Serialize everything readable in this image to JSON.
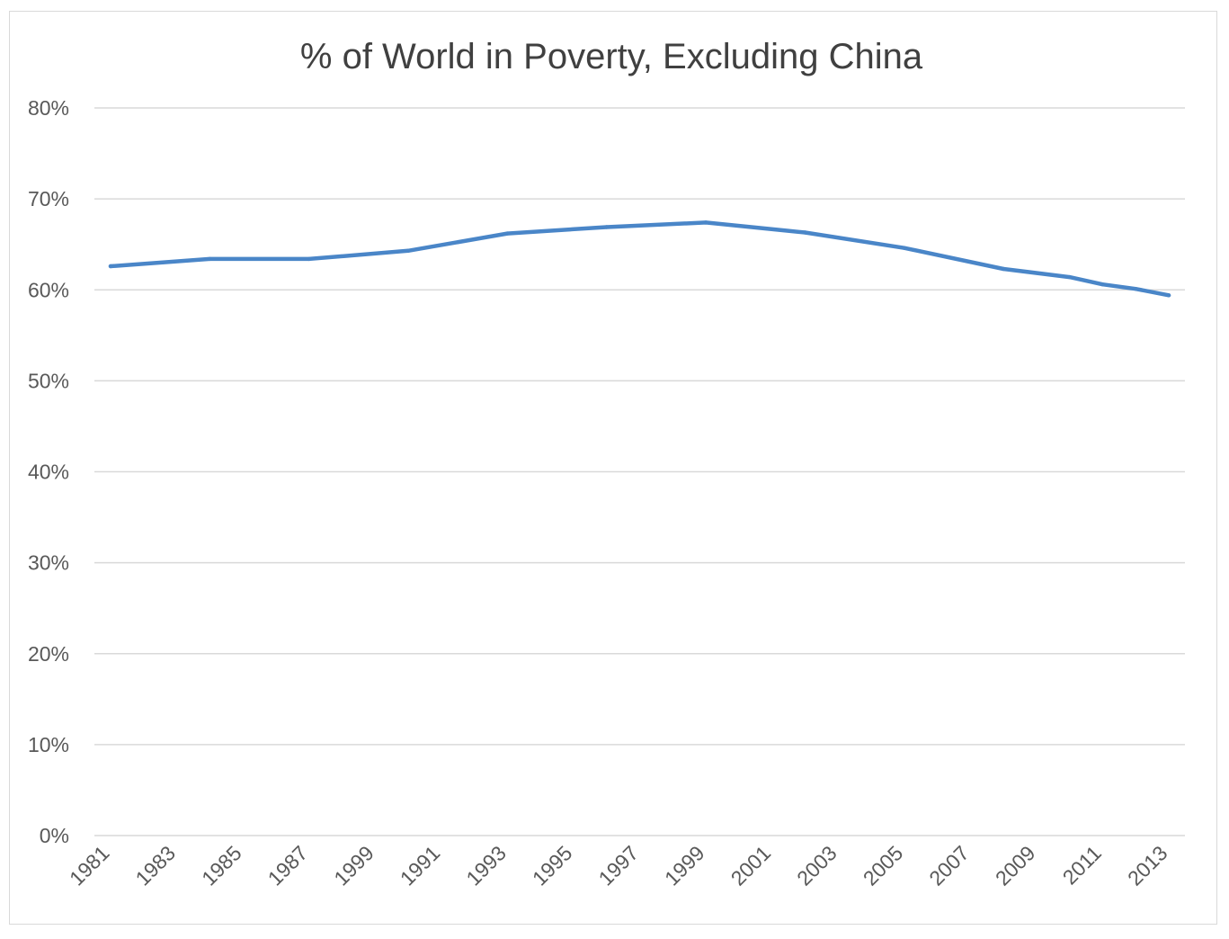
{
  "chart_data": {
    "type": "line",
    "title": "% of World in Poverty, Excluding China",
    "xlabel": "",
    "ylabel": "",
    "ylim": [
      0,
      80
    ],
    "y_ticks": [
      "0%",
      "10%",
      "20%",
      "30%",
      "40%",
      "50%",
      "60%",
      "70%",
      "80%"
    ],
    "categories": [
      "1981",
      "1983",
      "1985",
      "1987",
      "1999",
      "1991",
      "1993",
      "1995",
      "1997",
      "1999",
      "2001",
      "2003",
      "2005",
      "2007",
      "2009",
      "2011",
      "2013"
    ],
    "grid": true,
    "legend": "none",
    "series": [
      {
        "name": "% of World in Poverty, Excluding China",
        "color": "#4a86c8",
        "points": [
          {
            "x": 1981,
            "y": 62.6
          },
          {
            "x": 1984,
            "y": 63.4
          },
          {
            "x": 1987,
            "y": 63.4
          },
          {
            "x": 1990,
            "y": 64.3
          },
          {
            "x": 1993,
            "y": 66.2
          },
          {
            "x": 1996,
            "y": 66.9
          },
          {
            "x": 1999,
            "y": 67.4
          },
          {
            "x": 2002,
            "y": 66.3
          },
          {
            "x": 2005,
            "y": 64.6
          },
          {
            "x": 2008,
            "y": 62.3
          },
          {
            "x": 2010,
            "y": 61.4
          },
          {
            "x": 2011,
            "y": 60.6
          },
          {
            "x": 2012,
            "y": 60.1
          },
          {
            "x": 2013,
            "y": 59.4
          }
        ]
      }
    ]
  }
}
